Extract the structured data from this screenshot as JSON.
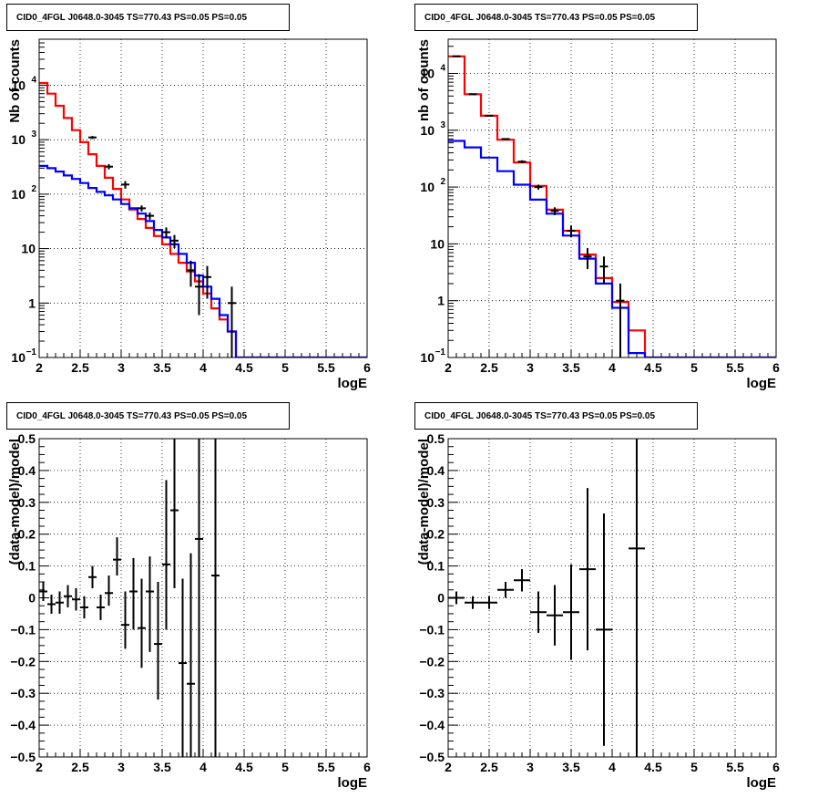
{
  "chart_data": [
    {
      "type": "line",
      "title": "CID0_4FGL J0648.0-3045 TS=770.43 PS=0.05 PS=0.05",
      "xlabel": "logE",
      "ylabel": "Nb of counts",
      "xlim": [
        2,
        6
      ],
      "ylim": [
        0.1,
        70000
      ],
      "log_y": true,
      "grid": true,
      "x_ticks": [
        "2",
        "2.5",
        "3",
        "3.5",
        "4",
        "4.5",
        "5",
        "5.5",
        "6"
      ],
      "y_ticks": [
        {
          "value": 0.1,
          "label": "10",
          "sup": "−1"
        },
        {
          "value": 1,
          "label": "1",
          "sup": ""
        },
        {
          "value": 10,
          "label": "10",
          "sup": ""
        },
        {
          "value": 100,
          "label": "10",
          "sup": "2"
        },
        {
          "value": 1000,
          "label": "10",
          "sup": "3"
        },
        {
          "value": 10000,
          "label": "10",
          "sup": "4"
        }
      ],
      "bin_edges": [
        2.0,
        2.1,
        2.2,
        2.3,
        2.4,
        2.5,
        2.6,
        2.7,
        2.8,
        2.9,
        3.0,
        3.1,
        3.2,
        3.3,
        3.4,
        3.5,
        3.6,
        3.7,
        3.8,
        3.9,
        4.0,
        4.1,
        4.2,
        4.3,
        4.4,
        4.5,
        4.6,
        4.7,
        4.8,
        4.9,
        5.0,
        5.1,
        5.2,
        5.3,
        5.4,
        5.5,
        5.6,
        5.7,
        5.8,
        5.9,
        6.0
      ],
      "series": [
        {
          "color": "#ff0000",
          "values": [
            11000,
            7000,
            4200,
            2500,
            1500,
            900,
            540,
            330,
            200,
            125,
            80,
            52,
            35,
            24,
            17,
            12,
            8,
            5.5,
            3.8,
            2.5,
            1.5,
            0.8,
            0.5,
            0.3,
            0.1,
            0.1,
            0.1,
            0.1,
            0.1,
            0.1,
            0.1,
            0.1,
            0.1,
            0.1,
            0.1,
            0.1,
            0.1,
            0.1,
            0.1,
            0.1
          ]
        },
        {
          "color": "#0000ff",
          "values": [
            330,
            300,
            260,
            220,
            190,
            160,
            130,
            110,
            95,
            80,
            66,
            55,
            44,
            32,
            22,
            16,
            12,
            8,
            5.5,
            3.2,
            2,
            1.2,
            0.6,
            0.3,
            0.1,
            0.1,
            0.1,
            0.1,
            0.1,
            0.1,
            0.1,
            0.1,
            0.1,
            0.1,
            0.1,
            0.1,
            0.1,
            0.1,
            0.1,
            0.1
          ]
        }
      ],
      "points": [
        {
          "x": 2.65,
          "y": 1100,
          "ylo": 1030,
          "yhi": 1170
        },
        {
          "x": 2.85,
          "y": 320,
          "ylo": 285,
          "yhi": 355
        },
        {
          "x": 3.05,
          "y": 150,
          "ylo": 126,
          "yhi": 174
        },
        {
          "x": 3.25,
          "y": 55,
          "ylo": 48,
          "yhi": 62
        },
        {
          "x": 3.35,
          "y": 40,
          "ylo": 34,
          "yhi": 46
        },
        {
          "x": 3.55,
          "y": 20,
          "ylo": 15.5,
          "yhi": 24.5
        },
        {
          "x": 3.65,
          "y": 14,
          "ylo": 10.2,
          "yhi": 17.8
        },
        {
          "x": 3.85,
          "y": 4,
          "ylo": 2,
          "yhi": 6
        },
        {
          "x": 3.95,
          "y": 2,
          "ylo": 0.6,
          "yhi": 3.4
        },
        {
          "x": 4.05,
          "y": 3,
          "ylo": 1.2,
          "yhi": 4.8
        },
        {
          "x": 4.35,
          "y": 1,
          "ylo": 0.1,
          "yhi": 2
        }
      ]
    },
    {
      "type": "line",
      "title": "CID0_4FGL J0648.0-3045 TS=770.43 PS=0.05 PS=0.05",
      "xlabel": "logE",
      "ylabel": "nb of counts",
      "xlim": [
        2,
        6
      ],
      "ylim": [
        0.1,
        40000
      ],
      "log_y": true,
      "grid": true,
      "x_ticks": [
        "2",
        "2.5",
        "3",
        "3.5",
        "4",
        "4.5",
        "5",
        "5.5",
        "6"
      ],
      "y_ticks": [
        {
          "value": 0.1,
          "label": "10",
          "sup": "−1"
        },
        {
          "value": 1,
          "label": "1",
          "sup": ""
        },
        {
          "value": 10,
          "label": "10",
          "sup": ""
        },
        {
          "value": 100,
          "label": "10",
          "sup": "2"
        },
        {
          "value": 1000,
          "label": "10",
          "sup": "3"
        },
        {
          "value": 10000,
          "label": "10",
          "sup": "4"
        }
      ],
      "bin_edges": [
        2.0,
        2.2,
        2.4,
        2.6,
        2.8,
        3.0,
        3.2,
        3.4,
        3.6,
        3.8,
        4.0,
        4.2,
        4.4,
        4.6,
        4.8,
        5.0,
        5.2,
        5.4,
        5.6,
        5.8,
        6.0
      ],
      "series": [
        {
          "color": "#ff0000",
          "values": [
            20000,
            4300,
            1800,
            680,
            270,
            105,
            40,
            17,
            6.5,
            2.5,
            0.95,
            0.3,
            0.1,
            0.1,
            0.1,
            0.1,
            0.1,
            0.1,
            0.1,
            0.1
          ]
        },
        {
          "color": "#0000ff",
          "values": [
            650,
            500,
            330,
            190,
            110,
            60,
            34,
            14,
            5.5,
            2,
            0.75,
            0.12,
            0.1,
            0.1,
            0.1,
            0.1,
            0.1,
            0.1,
            0.1,
            0.1
          ]
        }
      ],
      "points": [
        {
          "x": 2.1,
          "y": 20000,
          "ylo": 19800,
          "yhi": 20200
        },
        {
          "x": 2.3,
          "y": 4300,
          "ylo": 4230,
          "yhi": 4370
        },
        {
          "x": 2.5,
          "y": 1800,
          "ylo": 1760,
          "yhi": 1840
        },
        {
          "x": 2.7,
          "y": 700,
          "ylo": 675,
          "yhi": 725
        },
        {
          "x": 2.9,
          "y": 280,
          "ylo": 264,
          "yhi": 296
        },
        {
          "x": 3.1,
          "y": 100,
          "ylo": 90,
          "yhi": 110
        },
        {
          "x": 3.3,
          "y": 38,
          "ylo": 32,
          "yhi": 44
        },
        {
          "x": 3.5,
          "y": 17,
          "ylo": 13,
          "yhi": 21
        },
        {
          "x": 3.7,
          "y": 6,
          "ylo": 3.6,
          "yhi": 8.4
        },
        {
          "x": 3.9,
          "y": 4,
          "ylo": 2,
          "yhi": 6
        },
        {
          "x": 4.1,
          "y": 1,
          "ylo": 0.1,
          "yhi": 2
        }
      ]
    },
    {
      "type": "scatter",
      "title": "CID0_4FGL J0648.0-3045 TS=770.43 PS=0.05 PS=0.05",
      "xlabel": "logE",
      "ylabel": "(data-model)/model",
      "xlim": [
        2,
        6
      ],
      "ylim": [
        -0.5,
        0.5
      ],
      "grid": true,
      "x_ticks": [
        "2",
        "2.5",
        "3",
        "3.5",
        "4",
        "4.5",
        "5",
        "5.5",
        "6"
      ],
      "y_ticks": [
        "−0.5",
        "−0.4",
        "−0.3",
        "−0.2",
        "−0.1",
        "0",
        "0.1",
        "0.2",
        "0.3",
        "0.4",
        "0.5"
      ],
      "points": [
        {
          "x": 2.05,
          "y": 0.02,
          "ylo": -0.01,
          "yhi": 0.05,
          "hw": 0.05
        },
        {
          "x": 2.15,
          "y": -0.02,
          "ylo": -0.05,
          "yhi": 0.01,
          "hw": 0.05
        },
        {
          "x": 2.25,
          "y": -0.015,
          "ylo": -0.05,
          "yhi": 0.02,
          "hw": 0.05
        },
        {
          "x": 2.35,
          "y": 0.005,
          "ylo": -0.03,
          "yhi": 0.04,
          "hw": 0.05
        },
        {
          "x": 2.45,
          "y": -0.005,
          "ylo": -0.04,
          "yhi": 0.03,
          "hw": 0.05
        },
        {
          "x": 2.55,
          "y": -0.03,
          "ylo": -0.065,
          "yhi": 0.005,
          "hw": 0.05
        },
        {
          "x": 2.65,
          "y": 0.065,
          "ylo": 0.03,
          "yhi": 0.1,
          "hw": 0.05
        },
        {
          "x": 2.75,
          "y": -0.03,
          "ylo": -0.07,
          "yhi": 0.01,
          "hw": 0.05
        },
        {
          "x": 2.85,
          "y": 0.015,
          "ylo": -0.025,
          "yhi": 0.07,
          "hw": 0.05
        },
        {
          "x": 2.95,
          "y": 0.12,
          "ylo": 0.07,
          "yhi": 0.19,
          "hw": 0.05
        },
        {
          "x": 3.05,
          "y": -0.085,
          "ylo": -0.16,
          "yhi": 0.02,
          "hw": 0.05
        },
        {
          "x": 3.15,
          "y": 0.02,
          "ylo": -0.1,
          "yhi": 0.125,
          "hw": 0.05
        },
        {
          "x": 3.25,
          "y": -0.095,
          "ylo": -0.22,
          "yhi": 0.06,
          "hw": 0.05
        },
        {
          "x": 3.35,
          "y": 0.02,
          "ylo": -0.17,
          "yhi": 0.13,
          "hw": 0.05
        },
        {
          "x": 3.45,
          "y": -0.145,
          "ylo": -0.32,
          "yhi": 0.05,
          "hw": 0.05
        },
        {
          "x": 3.55,
          "y": 0.105,
          "ylo": -0.1,
          "yhi": 0.37,
          "hw": 0.05
        },
        {
          "x": 3.65,
          "y": 0.275,
          "ylo": 0.03,
          "yhi": 0.5,
          "hw": 0.05
        },
        {
          "x": 3.75,
          "y": -0.205,
          "ylo": -0.5,
          "yhi": 0.06,
          "hw": 0.05
        },
        {
          "x": 3.85,
          "y": -0.27,
          "ylo": -0.5,
          "yhi": 0.14,
          "hw": 0.05
        },
        {
          "x": 3.95,
          "y": 0.185,
          "ylo": -0.5,
          "yhi": 0.5,
          "hw": 0.05
        },
        {
          "x": 4.15,
          "y": 0.07,
          "ylo": -0.5,
          "yhi": 0.5,
          "hw": 0.05
        }
      ]
    },
    {
      "type": "scatter",
      "title": "CID0_4FGL J0648.0-3045 TS=770.43 PS=0.05 PS=0.05",
      "xlabel": "logE",
      "ylabel": "(data-model)/model",
      "xlim": [
        2,
        6
      ],
      "ylim": [
        -0.5,
        0.5
      ],
      "grid": true,
      "x_ticks": [
        "2",
        "2.5",
        "3",
        "3.5",
        "4",
        "4.5",
        "5",
        "5.5",
        "6"
      ],
      "y_ticks": [
        "−0.5",
        "−0.4",
        "−0.3",
        "−0.2",
        "−0.1",
        "0",
        "0.1",
        "0.2",
        "0.3",
        "0.4",
        "0.5"
      ],
      "points": [
        {
          "x": 2.1,
          "y": 0.0,
          "ylo": -0.02,
          "yhi": 0.02,
          "hw": 0.1
        },
        {
          "x": 2.3,
          "y": -0.015,
          "ylo": -0.035,
          "yhi": 0.005,
          "hw": 0.1
        },
        {
          "x": 2.5,
          "y": -0.015,
          "ylo": -0.035,
          "yhi": 0.005,
          "hw": 0.1
        },
        {
          "x": 2.7,
          "y": 0.025,
          "ylo": 0.0,
          "yhi": 0.05,
          "hw": 0.1
        },
        {
          "x": 2.9,
          "y": 0.055,
          "ylo": 0.02,
          "yhi": 0.09,
          "hw": 0.1
        },
        {
          "x": 3.1,
          "y": -0.045,
          "ylo": -0.11,
          "yhi": 0.02,
          "hw": 0.1
        },
        {
          "x": 3.3,
          "y": -0.055,
          "ylo": -0.15,
          "yhi": 0.04,
          "hw": 0.1
        },
        {
          "x": 3.5,
          "y": -0.045,
          "ylo": -0.195,
          "yhi": 0.105,
          "hw": 0.1
        },
        {
          "x": 3.7,
          "y": 0.09,
          "ylo": -0.165,
          "yhi": 0.345,
          "hw": 0.1
        },
        {
          "x": 3.9,
          "y": -0.1,
          "ylo": -0.465,
          "yhi": 0.265,
          "hw": 0.1
        },
        {
          "x": 4.3,
          "y": 0.155,
          "ylo": -0.5,
          "yhi": 0.5,
          "hw": 0.1
        }
      ]
    }
  ]
}
